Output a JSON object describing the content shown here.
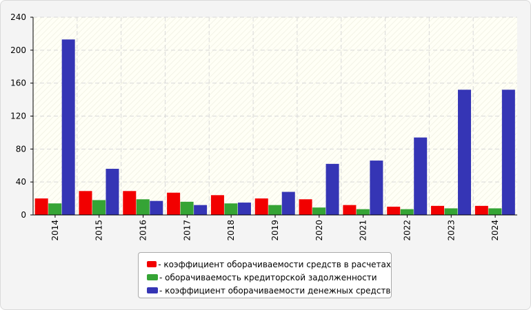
{
  "chart_data": {
    "type": "bar",
    "categories": [
      "2014",
      "2015",
      "2016",
      "2017",
      "2018",
      "2019",
      "2020",
      "2021",
      "2022",
      "2023",
      "2024"
    ],
    "series": [
      {
        "name": "- коэффициент оборачиваемости средств в расчетах",
        "color": "#f20000",
        "values": [
          20,
          29,
          29,
          27,
          24,
          20,
          19,
          12,
          10,
          11,
          11
        ]
      },
      {
        "name": "- оборачиваемость кредиторской задолженности",
        "color": "#35a435",
        "values": [
          14,
          18,
          19,
          16,
          14,
          12,
          9,
          7,
          7,
          8,
          8
        ]
      },
      {
        "name": "- коэффициент оборачиваемости денежных средств",
        "color": "#3535b5",
        "values": [
          213,
          56,
          17,
          12,
          15,
          28,
          62,
          66,
          94,
          152,
          152
        ]
      }
    ],
    "yticks": [
      "0",
      "40",
      "80",
      "120",
      "160",
      "200",
      "240"
    ],
    "ylim": [
      0,
      240
    ],
    "grid": true,
    "legend_position": "bottom"
  }
}
